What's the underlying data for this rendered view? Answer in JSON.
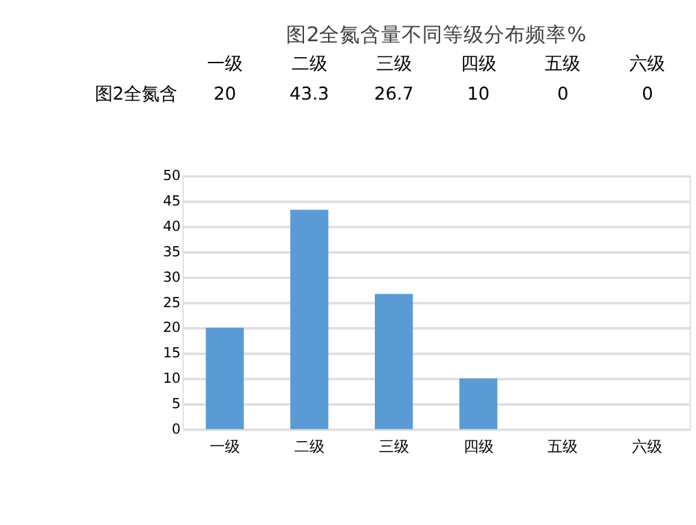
{
  "chart_data": {
    "type": "bar",
    "title": "图2全氮含量不同等级分布频率%",
    "categories": [
      "一级",
      "二级",
      "三级",
      "四级",
      "五级",
      "六级"
    ],
    "series": [
      {
        "name": "图2全氮含",
        "color": "#5b9bd5",
        "values": [
          20,
          43.3,
          26.7,
          10,
          0,
          0
        ]
      }
    ],
    "ylim": [
      0,
      50
    ],
    "yticks": [
      0,
      5,
      10,
      15,
      20,
      25,
      30,
      35,
      40,
      45,
      50
    ],
    "grid": "y",
    "legend": false,
    "data_labels": true
  }
}
